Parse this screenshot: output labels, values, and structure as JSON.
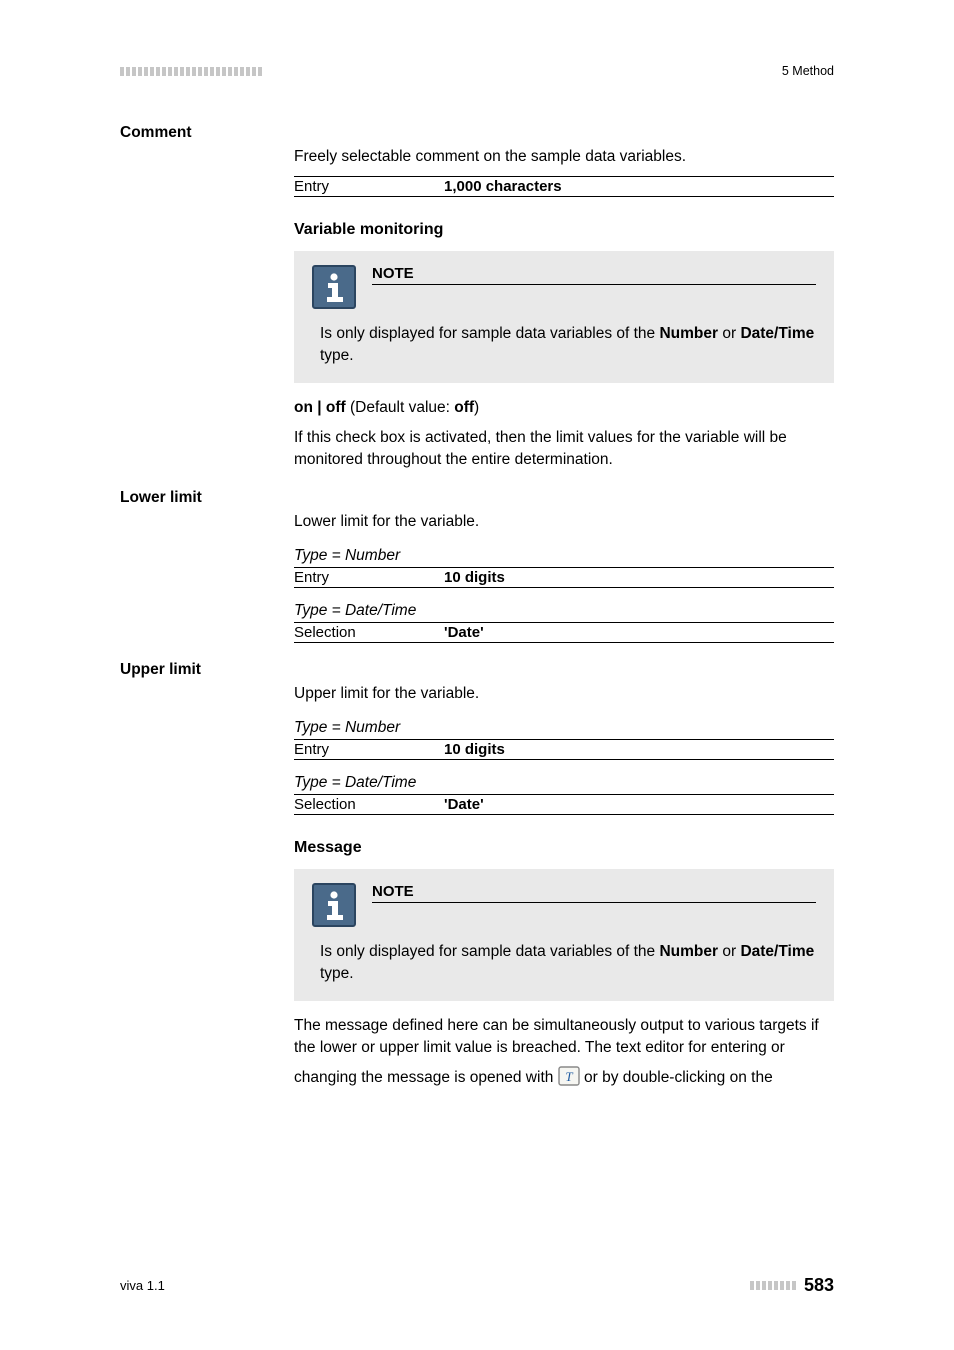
{
  "header": {
    "chapter": "5 Method",
    "tick_count": 24,
    "tick_color": "#c6c6c6"
  },
  "fields": {
    "comment": {
      "label": "Comment",
      "desc": "Freely selectable comment on the sample data variables.",
      "entry_label": "Entry",
      "entry_value": "1,000 characters"
    },
    "variable_monitoring": {
      "title": "Variable monitoring",
      "note_title": "NOTE",
      "note_body_pre": "Is only displayed for sample data variables of the ",
      "note_body_b1": "Number",
      "note_body_mid": " or ",
      "note_body_b2": "Date/Time",
      "note_body_post": " type.",
      "onoff_pre": "on | off",
      "onoff_mid": " (Default value: ",
      "onoff_b": "off",
      "onoff_post": ")",
      "desc": "If this check box is activated, then the limit values for the variable will be monitored throughout the entire determination."
    },
    "lower_limit": {
      "label": "Lower limit",
      "desc": "Lower limit for the variable.",
      "type_number": "Type = Number",
      "entry_label": "Entry",
      "entry_value": "10 digits",
      "type_datetime": "Type = Date/Time",
      "sel_label": "Selection",
      "sel_value": "'Date'"
    },
    "upper_limit": {
      "label": "Upper limit",
      "desc": "Upper limit for the variable.",
      "type_number": "Type = Number",
      "entry_label": "Entry",
      "entry_value": "10 digits",
      "type_datetime": "Type = Date/Time",
      "sel_label": "Selection",
      "sel_value": "'Date'"
    },
    "message": {
      "title": "Message",
      "note_title": "NOTE",
      "note_body_pre": "Is only displayed for sample data variables of the ",
      "note_body_b1": "Number",
      "note_body_mid": " or ",
      "note_body_b2": "Date/Time",
      "note_body_post": " type.",
      "desc": "The message defined here can be simultaneously output to various targets if the lower or upper limit value is breached. The text editor for entering or",
      "desc2_pre": "changing the message is opened with ",
      "desc2_post": " or by double-clicking on the"
    }
  },
  "icons": {
    "info_bg": "#4a6a8a",
    "info_border": "#2b4560",
    "info_fg": "#ffffff",
    "text_icon_border": "#7a7a7a",
    "text_icon_bg": "#f6f6f2",
    "text_icon_letter": "T",
    "text_icon_letter_color": "#1e5aa0"
  },
  "footer": {
    "product": "viva 1.1",
    "tick_count": 8,
    "tick_color": "#c6c6c6",
    "page": "583"
  }
}
